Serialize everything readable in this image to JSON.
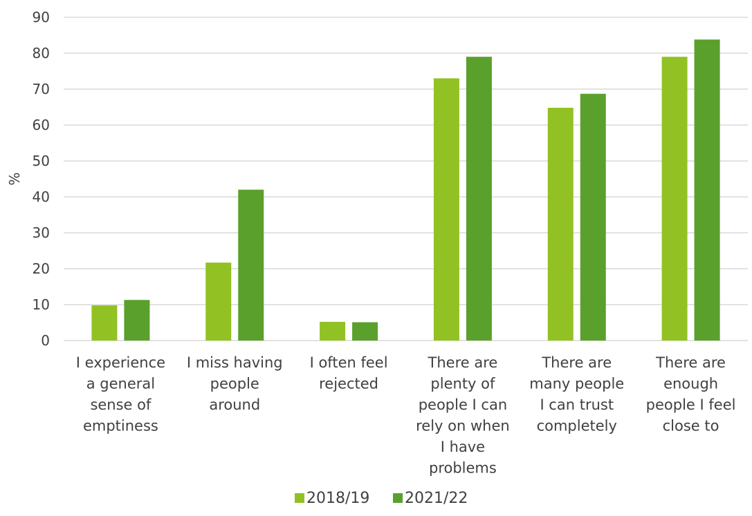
{
  "chart_data": {
    "type": "bar",
    "ylabel": "%",
    "ylim": [
      0,
      90
    ],
    "yticks": [
      0,
      10,
      20,
      30,
      40,
      50,
      60,
      70,
      80,
      90
    ],
    "grid": true,
    "legend_position": "bottom",
    "categories": [
      [
        "I experience",
        "a general",
        "sense of",
        "emptiness"
      ],
      [
        "I miss having",
        "people",
        "around"
      ],
      [
        "I often feel",
        "rejected"
      ],
      [
        "There are",
        "plenty of",
        "people I can",
        "rely on when",
        "I have",
        "problems"
      ],
      [
        "There are",
        "many people",
        "I can trust",
        "completely"
      ],
      [
        "There are",
        "enough",
        "people I feel",
        "close to"
      ]
    ],
    "series": [
      {
        "name": "2018/19",
        "color": "#92c123",
        "values": [
          9.8,
          21.7,
          5.2,
          73,
          64.8,
          79
        ]
      },
      {
        "name": "2021/22",
        "color": "#5aa02c",
        "values": [
          11.3,
          42,
          5.1,
          79,
          68.7,
          83.8
        ]
      }
    ]
  }
}
